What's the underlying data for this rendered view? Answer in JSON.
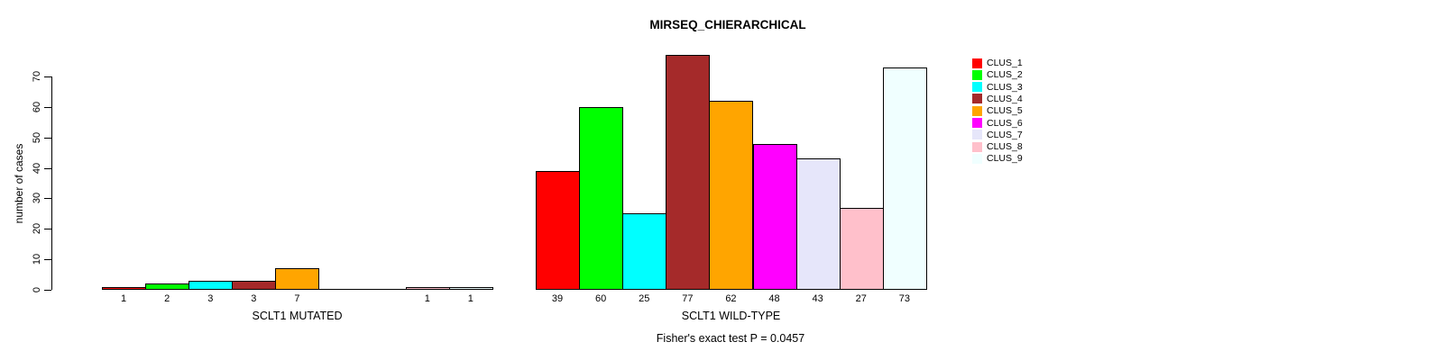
{
  "chart_data": {
    "type": "bar",
    "title": "MIRSEQ_CHIERARCHICAL",
    "ylabel": "number of cases",
    "ylim": [
      0,
      70
    ],
    "yticks": [
      0,
      10,
      20,
      30,
      40,
      50,
      60,
      70
    ],
    "grid": false,
    "legend_position": "right",
    "groups": [
      "SCLT1 MUTATED",
      "SCLT1 WILD-TYPE"
    ],
    "series": [
      {
        "name": "CLUS_1",
        "color": "#FF0000",
        "values": [
          1,
          39
        ]
      },
      {
        "name": "CLUS_2",
        "color": "#00FF00",
        "values": [
          2,
          60
        ]
      },
      {
        "name": "CLUS_3",
        "color": "#00FFFF",
        "values": [
          3,
          25
        ]
      },
      {
        "name": "CLUS_4",
        "color": "#A52A2A",
        "values": [
          3,
          77
        ]
      },
      {
        "name": "CLUS_5",
        "color": "#FFA500",
        "values": [
          7,
          62
        ]
      },
      {
        "name": "CLUS_6",
        "color": "#FF00FF",
        "values": [
          0,
          48
        ]
      },
      {
        "name": "CLUS_7",
        "color": "#E6E6FA",
        "values": [
          0,
          43
        ]
      },
      {
        "name": "CLUS_8",
        "color": "#FFC0CB",
        "values": [
          1,
          27
        ]
      },
      {
        "name": "CLUS_9",
        "color": "#F0FFFF",
        "values": [
          1,
          73
        ]
      }
    ],
    "annotation": "Fisher's exact test P = 0.0457"
  }
}
